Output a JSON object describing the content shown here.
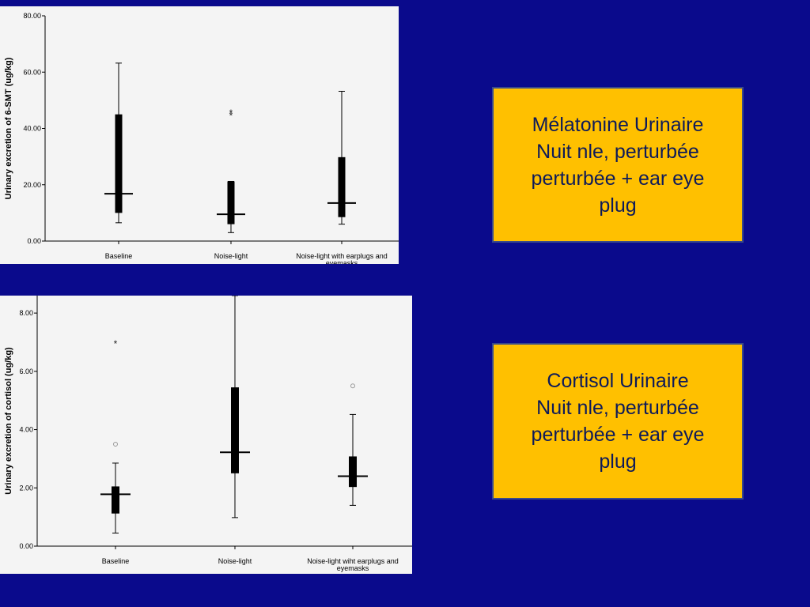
{
  "colors": {
    "background": "#0a0a8c",
    "box_fill": "#ffc000",
    "box_text": "#0d1a5a",
    "plot_bg": "#f4f4f4",
    "ink": "#000000"
  },
  "chart_data": [
    {
      "type": "boxplot",
      "title": "",
      "xlabel": "",
      "ylabel": "Urinary excretion of 6-SMT (ug/kg)",
      "ylim": [
        0,
        80
      ],
      "yticks": [
        "0.00",
        "20.00",
        "40.00",
        "60.00",
        "80.00"
      ],
      "categories": [
        "Baseline",
        "Noise-light",
        "Noise-light with earplugs and eyemasks"
      ],
      "series": [
        {
          "min": 6.5,
          "q1": 10,
          "median": 16.8,
          "q3": 45,
          "max": 63.2,
          "outliers": [],
          "extremes": []
        },
        {
          "min": 3,
          "q1": 6,
          "median": 9.5,
          "q3": 21.2,
          "max": 21.2,
          "outliers": [],
          "extremes": [
            44.8,
            45.8
          ]
        },
        {
          "min": 6,
          "q1": 8.5,
          "median": 13.5,
          "q3": 29.8,
          "max": 53.2,
          "outliers": [],
          "extremes": []
        }
      ]
    },
    {
      "type": "boxplot",
      "title": "",
      "xlabel": "",
      "ylabel": "Urinary excretion of cortisol (ug/kg)",
      "ylim": [
        0,
        8.6
      ],
      "yticks": [
        "0.00",
        "2.00",
        "4.00",
        "6.00",
        "8.00"
      ],
      "categories": [
        "Baseline",
        "Noise-light",
        "Noise-light wiht earplugs and eyemasks"
      ],
      "series": [
        {
          "min": 0.45,
          "q1": 1.12,
          "median": 1.78,
          "q3": 2.05,
          "max": 2.85,
          "outliers": [
            3.5
          ],
          "extremes": [
            6.97
          ]
        },
        {
          "min": 0.98,
          "q1": 2.5,
          "median": 3.22,
          "q3": 5.45,
          "max": 8.6,
          "outliers": [],
          "extremes": []
        },
        {
          "min": 1.4,
          "q1": 2.03,
          "median": 2.4,
          "q3": 3.08,
          "max": 4.52,
          "outliers": [
            5.5
          ],
          "extremes": []
        }
      ]
    }
  ],
  "boxes": [
    {
      "lines": [
        "Mélatonine Urinaire",
        "Nuit nle, perturbée",
        "perturbée + ear eye",
        "plug"
      ]
    },
    {
      "lines": [
        "Cortisol Urinaire",
        "Nuit nle, perturbée",
        "perturbée + ear eye",
        "plug"
      ]
    }
  ]
}
